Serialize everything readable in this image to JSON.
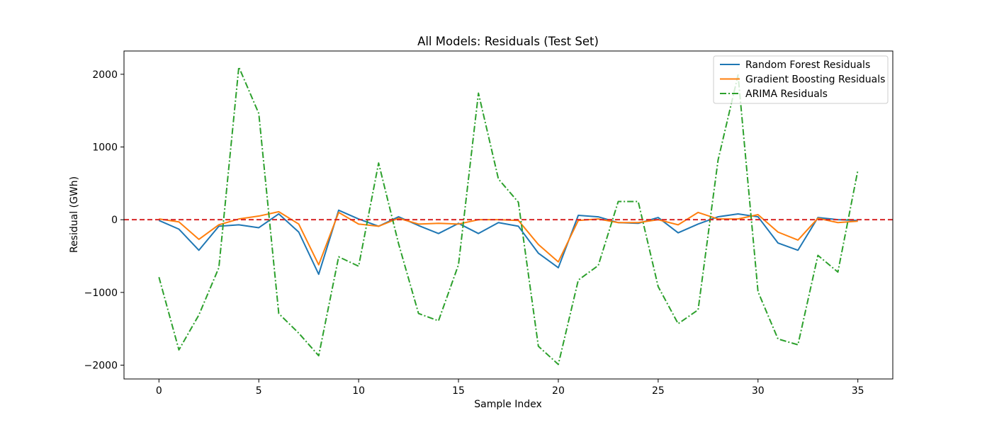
{
  "chart_data": {
    "type": "line",
    "title": "All Models: Residuals (Test Set)",
    "xlabel": "Sample Index",
    "ylabel": "Residual (GWh)",
    "xlim": [
      -1.75,
      36.75
    ],
    "ylim": [
      -2190,
      2320
    ],
    "xticks": [
      0,
      5,
      10,
      15,
      20,
      25,
      30,
      35
    ],
    "yticks": [
      -2000,
      -1000,
      0,
      1000,
      2000
    ],
    "grid": false,
    "legend_position": "top-right",
    "reference_line": {
      "y": 0,
      "color": "#d62728",
      "style": "dashed"
    },
    "x": [
      0,
      1,
      2,
      3,
      4,
      5,
      6,
      7,
      8,
      9,
      10,
      11,
      12,
      13,
      14,
      15,
      16,
      17,
      18,
      19,
      20,
      21,
      22,
      23,
      24,
      25,
      26,
      27,
      28,
      29,
      30,
      31,
      32,
      33,
      34,
      35
    ],
    "series": [
      {
        "name": "Random Forest Residuals",
        "color": "#1f77b4",
        "style": "solid",
        "values": [
          -10,
          -130,
          -420,
          -90,
          -70,
          -110,
          80,
          -170,
          -750,
          130,
          10,
          -90,
          40,
          -80,
          -190,
          -50,
          -190,
          -40,
          -90,
          -460,
          -660,
          60,
          40,
          -40,
          -50,
          30,
          -180,
          -60,
          40,
          80,
          40,
          -320,
          -420,
          30,
          0,
          -10
        ]
      },
      {
        "name": "Gradient Boosting Residuals",
        "color": "#ff7f0e",
        "style": "solid",
        "values": [
          10,
          -30,
          -270,
          -70,
          10,
          50,
          110,
          -60,
          -620,
          100,
          -60,
          -90,
          20,
          -60,
          -50,
          -60,
          0,
          0,
          -10,
          -340,
          -580,
          -10,
          10,
          -40,
          -40,
          0,
          -70,
          100,
          10,
          10,
          70,
          -170,
          -280,
          20,
          -40,
          -20
        ]
      },
      {
        "name": "ARIMA Residuals",
        "color": "#2ca02c",
        "style": "dashdot",
        "values": [
          -790,
          -1790,
          -1310,
          -660,
          2100,
          1460,
          -1290,
          -1560,
          -1870,
          -510,
          -640,
          780,
          -330,
          -1290,
          -1390,
          -620,
          1740,
          560,
          240,
          -1740,
          -1990,
          -830,
          -630,
          250,
          250,
          -920,
          -1430,
          -1240,
          820,
          1990,
          -990,
          -1640,
          -1720,
          -490,
          -720,
          680
        ]
      }
    ]
  }
}
